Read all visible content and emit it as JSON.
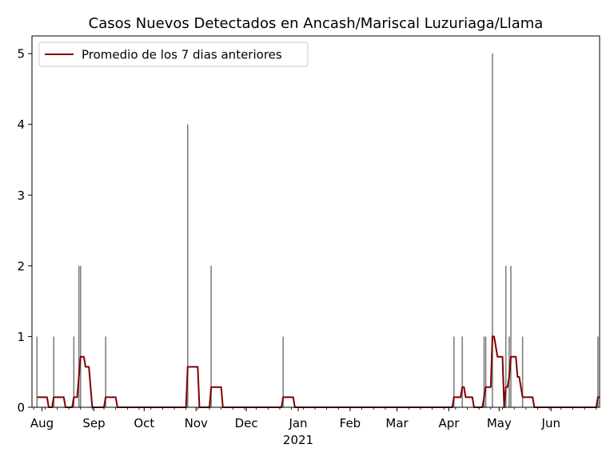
{
  "chart_data": {
    "type": "bar",
    "title": "Casos Nuevos Detectados en Ancash/Mariscal Luzuriaga/Llama",
    "x_start": "2020-07-26",
    "x_end": "2021-06-30",
    "ylim": [
      0,
      5.25
    ],
    "yticks": [
      0,
      1,
      2,
      3,
      4,
      5
    ],
    "xticks": [
      {
        "date": "2020-08-01",
        "label": "Aug"
      },
      {
        "date": "2020-09-01",
        "label": "Sep"
      },
      {
        "date": "2020-10-01",
        "label": "Oct"
      },
      {
        "date": "2020-11-01",
        "label": "Nov"
      },
      {
        "date": "2020-12-01",
        "label": "Dec"
      },
      {
        "date": "2021-01-01",
        "label": "Jan"
      },
      {
        "date": "2021-02-01",
        "label": "Feb"
      },
      {
        "date": "2021-03-01",
        "label": "Mar"
      },
      {
        "date": "2021-04-01",
        "label": "Apr"
      },
      {
        "date": "2021-05-01",
        "label": "May"
      },
      {
        "date": "2021-06-01",
        "label": "Jun"
      }
    ],
    "year_label": "2021",
    "grid": false,
    "legend_position": "top-left",
    "series": [
      {
        "type": "bar",
        "color": "#808080",
        "points": [
          {
            "date": "2020-07-29",
            "value": 1
          },
          {
            "date": "2020-08-08",
            "value": 1
          },
          {
            "date": "2020-08-20",
            "value": 1
          },
          {
            "date": "2020-08-23",
            "value": 2
          },
          {
            "date": "2020-08-24",
            "value": 2
          },
          {
            "date": "2020-09-08",
            "value": 1
          },
          {
            "date": "2020-10-27",
            "value": 4
          },
          {
            "date": "2020-11-10",
            "value": 2
          },
          {
            "date": "2020-12-23",
            "value": 1
          },
          {
            "date": "2021-04-04",
            "value": 1
          },
          {
            "date": "2021-04-09",
            "value": 1
          },
          {
            "date": "2021-04-22",
            "value": 1
          },
          {
            "date": "2021-04-23",
            "value": 1
          },
          {
            "date": "2021-04-27",
            "value": 5
          },
          {
            "date": "2021-05-05",
            "value": 2
          },
          {
            "date": "2021-05-07",
            "value": 1
          },
          {
            "date": "2021-05-08",
            "value": 2
          },
          {
            "date": "2021-05-15",
            "value": 1
          },
          {
            "date": "2021-06-29",
            "value": 1
          }
        ]
      },
      {
        "type": "line",
        "name": "Promedio de los 7 dias anteriores",
        "color": "#800000",
        "window": 7
      }
    ]
  }
}
